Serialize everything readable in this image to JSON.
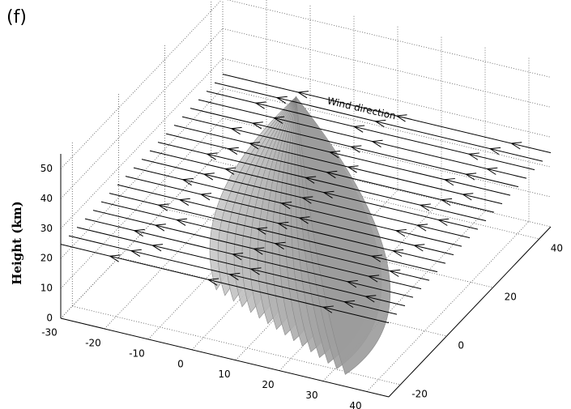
{
  "chart_data": {
    "type": "3d-plume",
    "panel_label": "(f)",
    "zlabel": "Height (km)",
    "annotation": "Wind direction",
    "xlim": [
      -30,
      45
    ],
    "ylim": [
      -25,
      45
    ],
    "zlim": [
      0,
      55
    ],
    "xticks": [
      -30,
      -20,
      -10,
      0,
      10,
      20,
      30,
      40
    ],
    "yticks": [
      -20,
      0,
      20,
      40
    ],
    "zticks": [
      0,
      10,
      20,
      30,
      40,
      50
    ],
    "grid": true
  }
}
